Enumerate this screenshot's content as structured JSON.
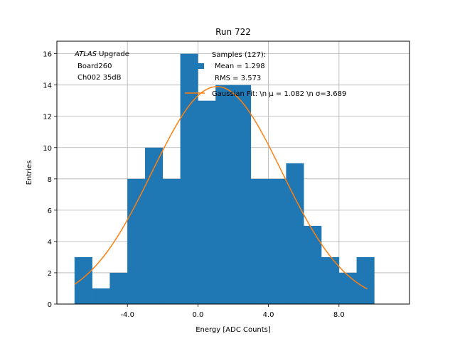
{
  "chart_data": {
    "type": "bar",
    "title": "Run 722",
    "xlabel": "Energy [ADC Counts]",
    "ylabel": "Entries",
    "xlim": [
      -8.0,
      12.0
    ],
    "ylim": [
      0,
      16.8
    ],
    "grid": true,
    "bin_edges": [
      -7.0,
      -6.0,
      -5.0,
      -4.0,
      -3.0,
      -2.0,
      -1.0,
      0.0,
      1.0,
      2.0,
      3.0,
      4.0,
      5.0,
      6.0,
      7.0,
      8.0,
      9.0,
      10.0
    ],
    "values": [
      3,
      1,
      2,
      8,
      10,
      8,
      16,
      13,
      14,
      14,
      8,
      8,
      9,
      5,
      3,
      2,
      3
    ],
    "bar_color": "#1f77b4",
    "fit_color": "#ff7f0e",
    "fit": {
      "mu": 1.082,
      "sigma": 3.689,
      "peak": 13.9,
      "x_start": -7.0,
      "x_end": 9.6
    },
    "x_ticks": [
      -4.0,
      0.0,
      4.0,
      8.0
    ],
    "x_tick_labels": [
      "-4.0",
      "0.0",
      "4.0",
      "8.0"
    ],
    "y_ticks": [
      0,
      2,
      4,
      6,
      8,
      10,
      12,
      14,
      16
    ],
    "y_tick_labels": [
      "0",
      "2",
      "4",
      "6",
      "8",
      "10",
      "12",
      "14",
      "16"
    ],
    "annotation": {
      "experiment": "ATLAS",
      "upgrade": " Upgrade",
      "board": "Board260",
      "channel": "Ch002 35dB"
    },
    "legend": {
      "location": "top-right",
      "samples_label": "Samples (127):",
      "mean_label": "Mean = 1.298",
      "rms_label": "RMS = 3.573",
      "fit_label": "Gaussian Fit: \\n μ = 1.082 \\n σ=3.689"
    }
  }
}
